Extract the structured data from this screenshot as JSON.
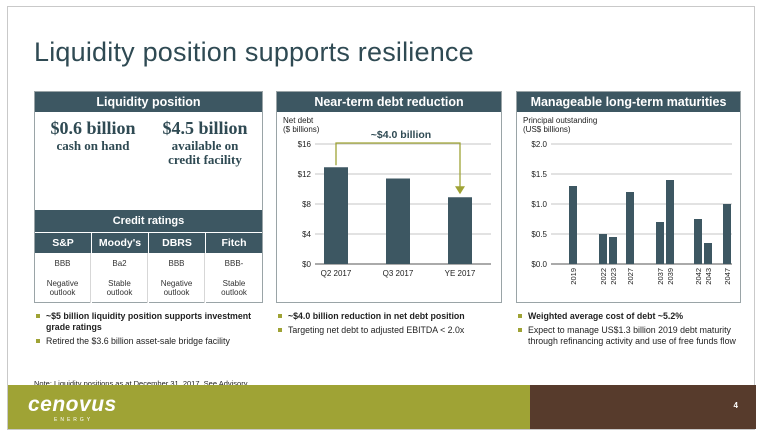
{
  "title": "Liquidity position supports resilience",
  "liquidity": {
    "header": "Liquidity position",
    "cash_value": "$0.6 billion",
    "cash_label": "cash on hand",
    "credit_value": "$4.5 billion",
    "credit_label_1": "available on",
    "credit_label_2": "credit facility",
    "ratings_header": "Credit ratings",
    "ratings": [
      {
        "agency": "S&P",
        "rating": "BBB",
        "outlook_1": "Negative",
        "outlook_2": "outlook"
      },
      {
        "agency": "Moody's",
        "rating": "Ba2",
        "outlook_1": "Stable",
        "outlook_2": "outlook"
      },
      {
        "agency": "DBRS",
        "rating": "BBB",
        "outlook_1": "Negative",
        "outlook_2": "outlook"
      },
      {
        "agency": "Fitch",
        "rating": "BBB-",
        "outlook_1": "Stable",
        "outlook_2": "outlook"
      }
    ],
    "bullets": [
      "~$5 billion liquidity position supports investment grade ratings",
      "Retired the $3.6 billion asset-sale bridge facility"
    ]
  },
  "debt": {
    "header": "Near-term debt reduction",
    "ylabel_1": "Net debt",
    "ylabel_2": "($ billions)",
    "annotation": "~$4.0 billion",
    "bullets": [
      "~$4.0 billion reduction in net debt position",
      "Targeting net debt to adjusted EBITDA < 2.0x"
    ]
  },
  "maturities": {
    "header": "Manageable long-term maturities",
    "ylabel_1": "Principal outstanding",
    "ylabel_2": "(US$ billions)",
    "bullets": [
      "Weighted average cost of debt ~5.2%",
      "Expect to manage US$1.3 billion 2019 debt maturity through refinancing activity and use of free funds flow"
    ]
  },
  "chart_data": [
    {
      "type": "bar",
      "categories": [
        "Q2 2017",
        "Q3 2017",
        "YE 2017"
      ],
      "values": [
        12.9,
        11.4,
        8.9
      ],
      "ylim": [
        0,
        16
      ],
      "yticks": [
        "$0",
        "$4",
        "$8",
        "$12",
        "$16"
      ],
      "ytick_values": [
        0,
        4,
        8,
        12,
        16
      ],
      "ylabel": "Net debt ($ billions)",
      "color": "#3d5762"
    },
    {
      "type": "bar",
      "categories": [
        "2019",
        "2022",
        "2023",
        "2027",
        "2037",
        "2039",
        "2042",
        "2043",
        "2047"
      ],
      "values": [
        1.3,
        0.5,
        0.45,
        1.2,
        0.7,
        1.4,
        0.75,
        0.35,
        1.0
      ],
      "ylim": [
        0,
        2
      ],
      "yticks": [
        "$0.0",
        "$0.5",
        "$1.0",
        "$1.5",
        "$2.0"
      ],
      "ytick_values": [
        0,
        0.5,
        1.0,
        1.5,
        2.0
      ],
      "ylabel": "Principal outstanding (US$ billions)",
      "color": "#3d5762"
    }
  ],
  "note": "Note: Liquidity positions as at December 31, 2017. See Advisory.",
  "footer": {
    "logo": "cenovus",
    "logo_sub": "ENERGY",
    "page_number": "4",
    "green": "#9fa335",
    "brown": "#573b2c"
  }
}
